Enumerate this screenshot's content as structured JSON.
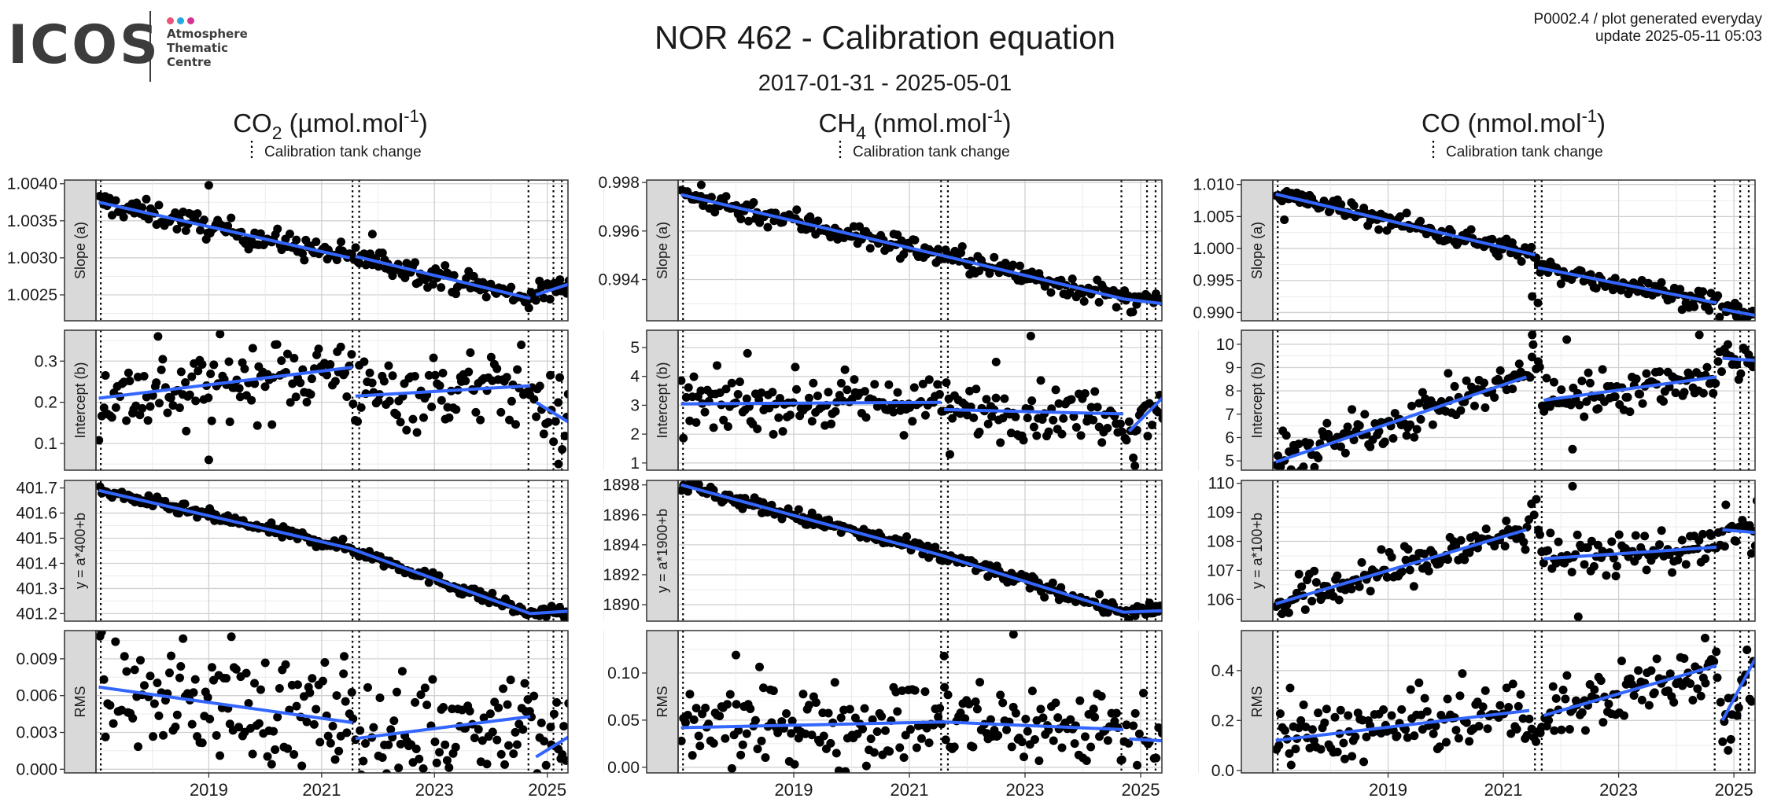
{
  "logo": {
    "text": "ICOS",
    "sub": [
      "Atmosphere",
      "Thematic",
      "Centre"
    ],
    "dot_colors": [
      "#e8547a",
      "#27a8e0",
      "#d6338f"
    ]
  },
  "header": {
    "title": "NOR 462 - Calibration equation",
    "subtitle": "2017-01-31 - 2025-05-01",
    "info_line1": "P0002.4 / plot generated everyday",
    "info_line2": "update  2025-05-11 05:03"
  },
  "style": {
    "point_color": "#000000",
    "fit_color": "#3366ff",
    "strip_fill": "#d9d9d9",
    "grid_major": "#d0d0d0",
    "grid_minor": "#ebebeb"
  },
  "chart_data": [
    {
      "type": "scatter",
      "title": "CO2 (µmol.mol-1)",
      "title_parts": [
        "CO",
        "2",
        " (µmol.mol",
        "-1",
        ")"
      ],
      "legend": "Calibration tank change",
      "x_ticks": [
        "2019",
        "2021",
        "2023",
        "2025"
      ],
      "xlim": [
        "2017-01-01",
        "2025-05-15"
      ],
      "tank_changes": [
        "2017-02-01",
        "2021-07-20",
        "2021-09-01",
        "2024-09-01",
        "2025-02-10",
        "2025-04-05"
      ],
      "panels": [
        {
          "strip": "Slope (a)",
          "ylim": [
            1.00215,
            1.00405
          ],
          "y_ticks": [
            "1.0025",
            "1.0030",
            "1.0035",
            "1.0040"
          ],
          "trend": [
            [
              2017.05,
              1.00375
            ],
            [
              2021.5,
              1.003
            ],
            [
              2021.6,
              1.00302
            ],
            [
              2024.7,
              1.00245
            ],
            [
              2024.8,
              1.0025
            ],
            [
              2025.4,
              1.00265
            ]
          ],
          "noise": 8e-05,
          "spikes": [
            [
              2019.0,
              1.00398
            ],
            [
              2021.9,
              1.00332
            ]
          ]
        },
        {
          "strip": "Intercept (b)",
          "ylim": [
            0.035,
            0.375
          ],
          "y_ticks": [
            "0.1",
            "0.2",
            "0.3"
          ],
          "trend": [
            [
              2017.05,
              0.21
            ],
            [
              2021.55,
              0.285
            ],
            [
              2021.6,
              0.215
            ],
            [
              2024.7,
              0.24
            ],
            [
              2024.8,
              0.2
            ],
            [
              2025.4,
              0.15
            ]
          ],
          "noise": 0.045,
          "spikes": [
            [
              2018.1,
              0.36
            ],
            [
              2019.0,
              0.06
            ],
            [
              2025.2,
              0.05
            ],
            [
              2018.6,
              0.13
            ]
          ]
        },
        {
          "strip": "y = a*400+b",
          "ylim": [
            401.17,
            401.73
          ],
          "y_ticks": [
            "401.2",
            "401.3",
            "401.4",
            "401.5",
            "401.6",
            "401.7"
          ],
          "trend": [
            [
              2017.05,
              401.69
            ],
            [
              2021.5,
              401.46
            ],
            [
              2024.7,
              401.2
            ],
            [
              2025.4,
              401.21
            ]
          ],
          "noise": 0.012,
          "spikes": []
        },
        {
          "strip": "RMS",
          "ylim": [
            -0.0003,
            0.0113
          ],
          "y_ticks": [
            "0.000",
            "0.003",
            "0.006",
            "0.009"
          ],
          "trend": [
            [
              2017.05,
              0.0067
            ],
            [
              2021.55,
              0.0038
            ],
            [
              2021.6,
              0.0025
            ],
            [
              2024.7,
              0.0043
            ],
            [
              2024.8,
              0.001
            ],
            [
              2025.4,
              0.0027
            ]
          ],
          "noise": 0.0022,
          "spikes": [
            [
              2019.4,
              0.0108
            ],
            [
              2021.4,
              0.0092
            ],
            [
              2024.6,
              0.007
            ]
          ]
        }
      ]
    },
    {
      "type": "scatter",
      "title": "CH4 (nmol.mol-1)",
      "title_parts": [
        "CH",
        "4",
        " (nmol.mol",
        "-1",
        ")"
      ],
      "legend": "Calibration tank change",
      "x_ticks": [
        "2019",
        "2021",
        "2023",
        "2025"
      ],
      "xlim": [
        "2017-01-01",
        "2025-05-15"
      ],
      "tank_changes": [
        "2017-02-01",
        "2021-07-20",
        "2021-09-01",
        "2024-09-01",
        "2025-02-10",
        "2025-04-05"
      ],
      "panels": [
        {
          "strip": "Slope (a)",
          "ylim": [
            0.9923,
            0.9981
          ],
          "y_ticks": [
            "0.994",
            "0.996",
            "0.998"
          ],
          "trend": [
            [
              2017.05,
              0.9975
            ],
            [
              2021.55,
              0.995
            ],
            [
              2024.7,
              0.9932
            ],
            [
              2025.4,
              0.993
            ]
          ],
          "noise": 0.00025,
          "spikes": [
            [
              2017.4,
              0.9979
            ]
          ]
        },
        {
          "strip": "Intercept (b)",
          "ylim": [
            0.75,
            5.6
          ],
          "y_ticks": [
            "1",
            "2",
            "3",
            "4",
            "5"
          ],
          "trend": [
            [
              2017.05,
              3.05
            ],
            [
              2021.55,
              3.1
            ],
            [
              2021.6,
              2.85
            ],
            [
              2024.7,
              2.7
            ],
            [
              2024.8,
              2.1
            ],
            [
              2025.4,
              3.3
            ]
          ],
          "noise": 0.45,
          "spikes": [
            [
              2023.1,
              5.4
            ],
            [
              2018.2,
              4.8
            ],
            [
              2021.7,
              1.3
            ],
            [
              2024.9,
              0.9
            ],
            [
              2022.5,
              4.5
            ]
          ]
        },
        {
          "strip": "y = a*1900+b",
          "ylim": [
            1888.9,
            1898.3
          ],
          "y_ticks": [
            "1890",
            "1892",
            "1894",
            "1896",
            "1898"
          ],
          "trend": [
            [
              2017.05,
              1898.0
            ],
            [
              2021.55,
              1893.3
            ],
            [
              2024.7,
              1889.5
            ],
            [
              2025.4,
              1889.6
            ]
          ],
          "noise": 0.25,
          "spikes": []
        },
        {
          "strip": "RMS",
          "ylim": [
            -0.006,
            0.145
          ],
          "y_ticks": [
            "0.00",
            "0.05",
            "0.10"
          ],
          "trend": [
            [
              2017.05,
              0.042
            ],
            [
              2021.55,
              0.048
            ],
            [
              2021.6,
              0.048
            ],
            [
              2024.7,
              0.04
            ],
            [
              2024.8,
              0.03
            ],
            [
              2025.4,
              0.028
            ]
          ],
          "noise": 0.022,
          "spikes": [
            [
              2022.8,
              0.141
            ],
            [
              2021.6,
              0.118
            ],
            [
              2018.0,
              0.119
            ]
          ]
        }
      ]
    },
    {
      "type": "scatter",
      "title": "CO (nmol.mol-1)",
      "title_parts": [
        "CO",
        "",
        " (nmol.mol",
        "-1",
        ")"
      ],
      "legend": "Calibration tank change",
      "x_ticks": [
        "2019",
        "2021",
        "2023",
        "2025"
      ],
      "xlim": [
        "2017-01-01",
        "2025-05-15"
      ],
      "tank_changes": [
        "2017-02-01",
        "2021-07-20",
        "2021-09-01",
        "2024-09-01",
        "2025-02-10",
        "2025-04-05"
      ],
      "panels": [
        {
          "strip": "Slope (a)",
          "ylim": [
            0.9887,
            1.0107
          ],
          "y_ticks": [
            "0.990",
            "0.995",
            "1.000",
            "1.005",
            "1.010"
          ],
          "trend": [
            [
              2017.05,
              1.0085
            ],
            [
              2021.55,
              0.999
            ],
            [
              2021.6,
              0.997
            ],
            [
              2024.7,
              0.9915
            ],
            [
              2024.8,
              0.9905
            ],
            [
              2025.4,
              0.9895
            ]
          ],
          "noise": 0.0008,
          "spikes": [
            [
              2021.5,
              0.9925
            ],
            [
              2021.6,
              0.9915
            ],
            [
              2017.2,
              1.0045
            ]
          ]
        },
        {
          "strip": "Intercept (b)",
          "ylim": [
            4.6,
            10.6
          ],
          "y_ticks": [
            "5",
            "6",
            "7",
            "8",
            "9",
            "10"
          ],
          "trend": [
            [
              2017.05,
              4.95
            ],
            [
              2021.4,
              8.6
            ],
            [
              2021.5,
              9.8
            ],
            [
              2021.6,
              9.2
            ],
            [
              2021.7,
              7.6
            ],
            [
              2024.7,
              8.6
            ],
            [
              2024.8,
              9.4
            ],
            [
              2025.4,
              9.3
            ]
          ],
          "noise": 0.45,
          "spikes": [
            [
              2021.5,
              10.4
            ],
            [
              2022.1,
              10.2
            ],
            [
              2022.2,
              5.5
            ],
            [
              2024.4,
              10.4
            ]
          ]
        },
        {
          "strip": "y = a*100+b",
          "ylim": [
            105.25,
            110.1
          ],
          "y_ticks": [
            "106",
            "107",
            "108",
            "109",
            "110"
          ],
          "trend": [
            [
              2017.05,
              105.85
            ],
            [
              2021.4,
              108.4
            ],
            [
              2021.5,
              109.4
            ],
            [
              2021.6,
              108.9
            ],
            [
              2021.7,
              107.4
            ],
            [
              2024.7,
              107.8
            ],
            [
              2024.8,
              108.4
            ],
            [
              2025.4,
              108.3
            ]
          ],
          "noise": 0.35,
          "spikes": [
            [
              2022.2,
              109.9
            ],
            [
              2022.3,
              105.4
            ],
            [
              2025.4,
              109.4
            ]
          ]
        },
        {
          "strip": "RMS",
          "ylim": [
            -0.01,
            0.56
          ],
          "y_ticks": [
            "0.0",
            "0.2",
            "0.4"
          ],
          "trend": [
            [
              2017.05,
              0.12
            ],
            [
              2021.45,
              0.24
            ],
            [
              2021.5,
              0.22
            ],
            [
              2021.6,
              0.06
            ],
            [
              2021.7,
              0.22
            ],
            [
              2024.7,
              0.42
            ],
            [
              2024.8,
              0.2
            ],
            [
              2025.4,
              0.46
            ]
          ],
          "noise": 0.06,
          "spikes": [
            [
              2017.3,
              0.33
            ],
            [
              2024.5,
              0.53
            ],
            [
              2024.9,
              0.08
            ]
          ]
        }
      ]
    }
  ]
}
